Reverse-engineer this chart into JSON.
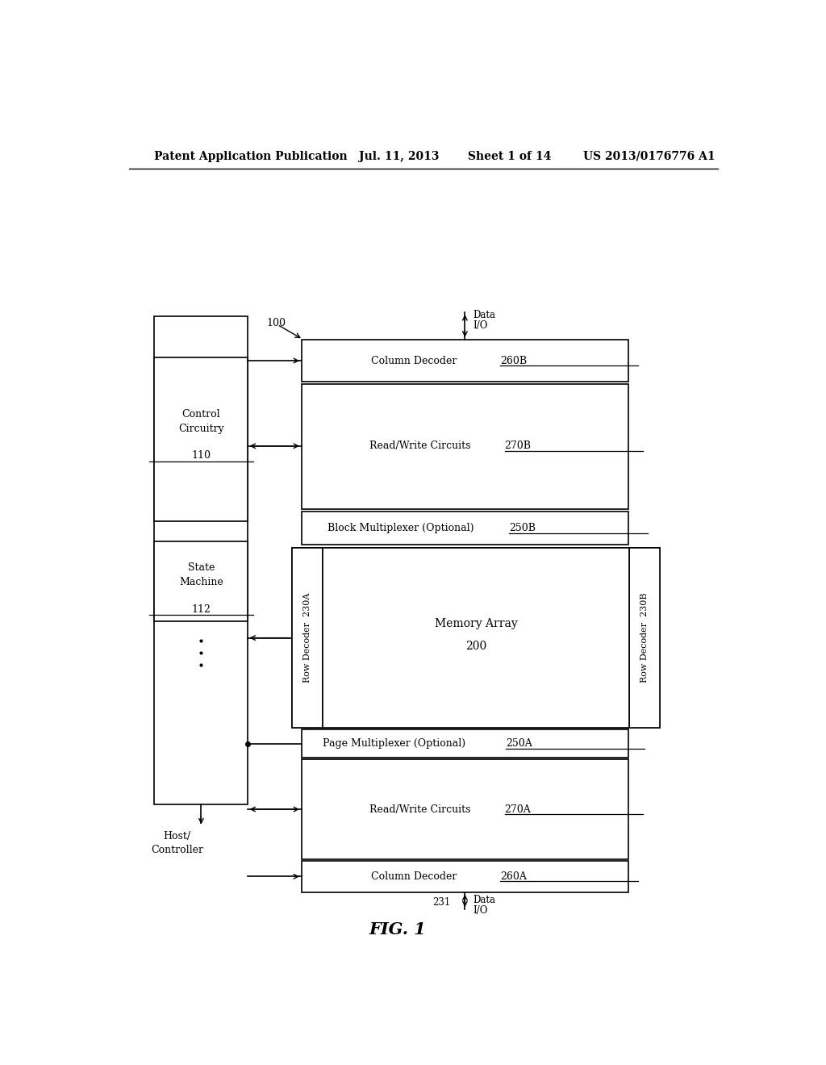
{
  "bg_color": "#ffffff",
  "header_text": "Patent Application Publication",
  "header_date": "Jul. 11, 2013",
  "header_sheet": "Sheet 1 of 14",
  "header_patent": "US 2013/0176776 A1",
  "fig_label": "FIG. 1"
}
